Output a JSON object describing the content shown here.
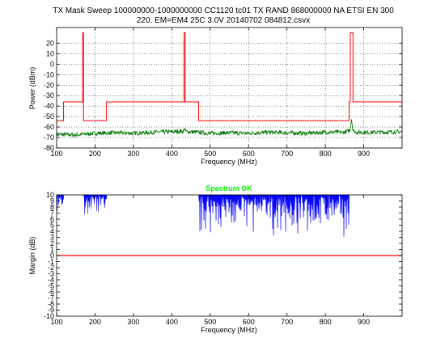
{
  "figure": {
    "title_line1": "TX Mask Sweep 100000000-1000000000 CC1120 tc01 TX RAND 868000000 NA ETSI EN 300",
    "title_line2": "220. EM=EM4 25C 3.0V 20140702 084812.csvx"
  },
  "chart_data": [
    {
      "type": "line",
      "title": "",
      "xlabel": "Frequency (MHz)",
      "ylabel": "Power (dBm)",
      "xlim": [
        100,
        1000
      ],
      "ylim": [
        -80,
        35
      ],
      "xticks": [
        100,
        200,
        300,
        400,
        500,
        600,
        700,
        800,
        900
      ],
      "yticks": [
        20,
        10,
        0,
        -10,
        -20,
        -30,
        -40,
        -50,
        -60,
        -70,
        -80
      ],
      "grid": true,
      "series": [
        {
          "color": "#ff0000",
          "x": [
            100,
            118,
            118,
            168,
            168,
            170,
            170,
            230,
            230,
            432,
            432,
            435,
            435,
            470,
            470,
            862,
            862,
            865,
            865,
            872,
            872,
            876,
            876,
            1000
          ],
          "y": [
            -54,
            -54,
            -36,
            -36,
            30,
            30,
            -54,
            -54,
            -36,
            -36,
            30,
            30,
            -36,
            -36,
            -54,
            -54,
            -36,
            -36,
            30,
            30,
            -36,
            -36,
            -36,
            -36
          ]
        },
        {
          "color": "#007700",
          "x": [
            100,
            150,
            200,
            250,
            300,
            350,
            400,
            430,
            434,
            436,
            440,
            470,
            500,
            550,
            600,
            650,
            700,
            750,
            800,
            850,
            864,
            868,
            872,
            880,
            900,
            950,
            1000
          ],
          "y": [
            -67,
            -67.5,
            -66,
            -65.5,
            -66,
            -65,
            -64.5,
            -64,
            -61,
            -64,
            -64.5,
            -65,
            -66,
            -65.5,
            -66,
            -65,
            -65.5,
            -66,
            -65,
            -65,
            -63,
            -52,
            -63,
            -65,
            -65,
            -65,
            -64.5
          ]
        }
      ]
    },
    {
      "type": "area",
      "title": "",
      "xlabel": "Frequency (MHz)",
      "ylabel": "Margin (dB)",
      "xlim": [
        100,
        1000
      ],
      "ylim": [
        -10,
        10
      ],
      "xticks": [
        100,
        200,
        300,
        400,
        500,
        600,
        700,
        800,
        900
      ],
      "yticks": [
        10,
        9,
        8,
        7,
        6,
        5,
        4,
        3,
        2,
        1,
        0,
        -1,
        -2,
        -3,
        -4,
        -5,
        -6,
        -7,
        -8,
        -9,
        -10
      ],
      "grid": false,
      "annotation": "Spectrum OK",
      "series": [
        {
          "color": "#0000ff",
          "bands": [
            {
              "x": [
                100,
                118
              ],
              "floor": 7
            },
            {
              "x": [
                170,
                230
              ],
              "floor": 6
            },
            {
              "x": [
                470,
                862
              ],
              "floor": 3
            }
          ]
        },
        {
          "color": "#ff0000",
          "x": [
            100,
            1000
          ],
          "y": [
            0,
            0
          ]
        }
      ]
    }
  ]
}
